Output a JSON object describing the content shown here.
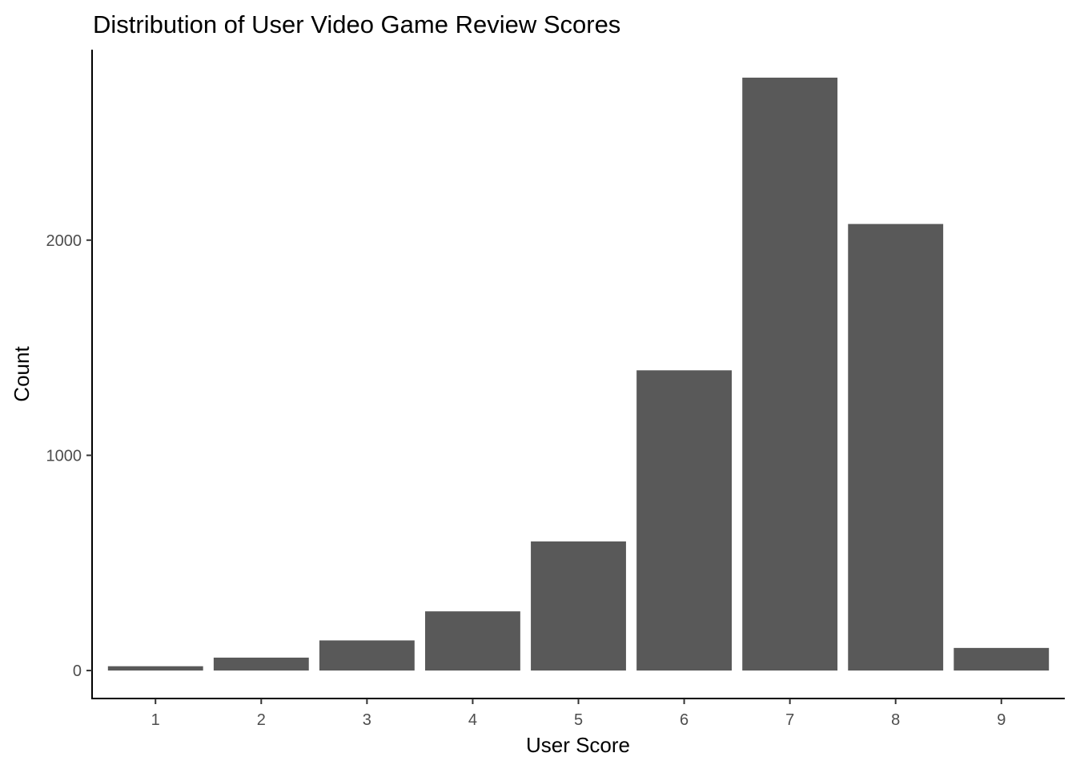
{
  "chart_data": {
    "type": "bar",
    "title": "Distribution of User Video Game Review Scores",
    "xlabel": "User Score",
    "ylabel": "Count",
    "categories": [
      "1",
      "2",
      "3",
      "4",
      "5",
      "6",
      "7",
      "8",
      "9"
    ],
    "values": [
      20,
      60,
      140,
      275,
      600,
      1395,
      2755,
      2075,
      105
    ],
    "ylim": [
      -130,
      2885
    ],
    "yticks": [
      0,
      1000,
      2000
    ],
    "grid": false,
    "legend": "none",
    "bar_color": "#595959"
  }
}
